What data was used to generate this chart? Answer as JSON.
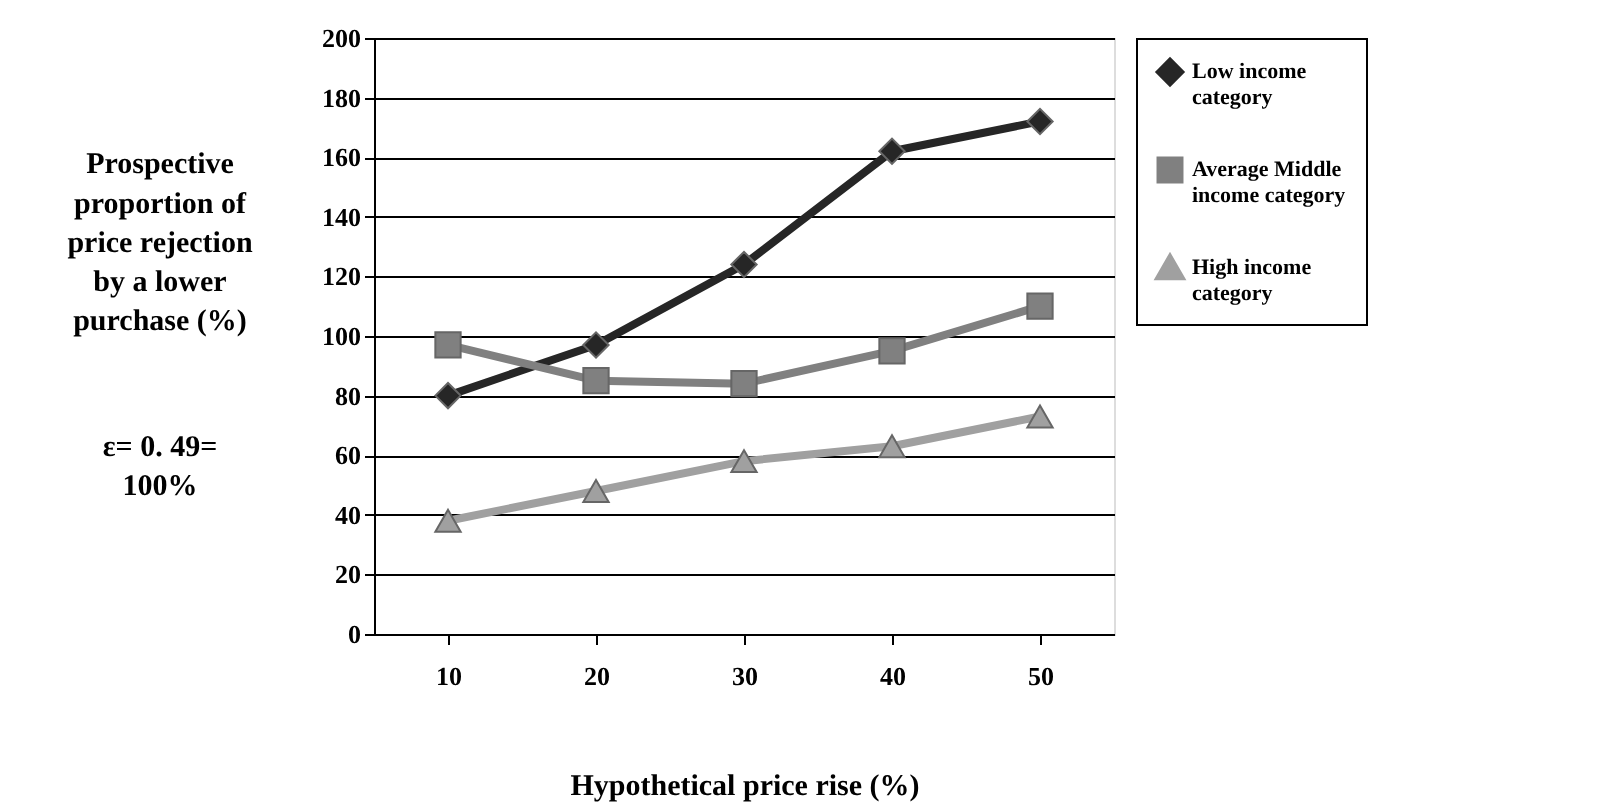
{
  "chart_data": {
    "type": "line",
    "xlabel": "Hypothetical price rise (%)",
    "ylabel": "Prospective proportion of price rejection by a lower purchase (%)",
    "annotations": [
      "ε= 0. 49= 100%"
    ],
    "categories": [
      "10",
      "20",
      "30",
      "40",
      "50"
    ],
    "series": [
      {
        "name": "Low income category",
        "color": "#262626",
        "marker": "diamond",
        "values": [
          80,
          97,
          124,
          162,
          172
        ]
      },
      {
        "name": "Average Middle income category",
        "color": "#808080",
        "marker": "square",
        "values": [
          97,
          85,
          84,
          95,
          110
        ]
      },
      {
        "name": "High income category",
        "color": "#a0a0a0",
        "marker": "triangle",
        "values": [
          38,
          48,
          58,
          63,
          73
        ]
      }
    ],
    "ylim": [
      0,
      200
    ],
    "yticks": [
      0,
      20,
      40,
      60,
      80,
      100,
      120,
      140,
      160,
      180,
      200
    ],
    "grid": "y",
    "legend": "right",
    "line_style": "solid"
  }
}
